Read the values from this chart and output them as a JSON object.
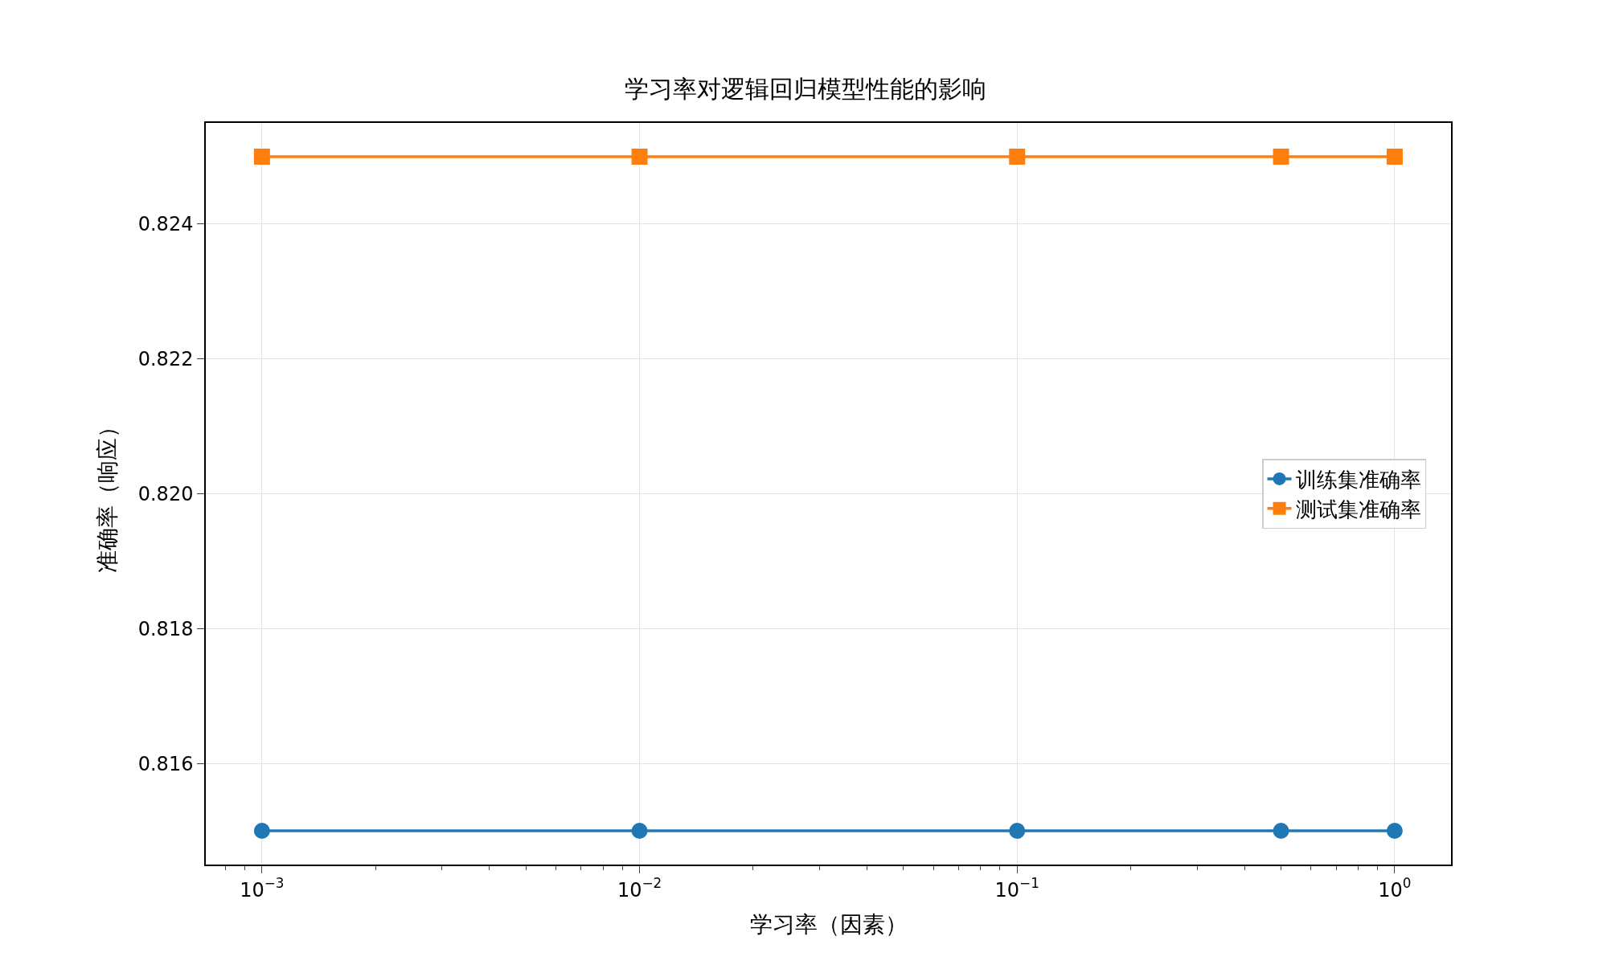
{
  "chart_data": {
    "type": "line",
    "title": "学习率对逻辑回归模型性能的影响",
    "xlabel": "学习率（因素）",
    "ylabel": "准确率（响应）",
    "x": [
      0.001,
      0.01,
      0.1,
      0.5,
      1
    ],
    "series": [
      {
        "name": "训练集准确率",
        "color": "#1f77b4",
        "marker": "circle",
        "values": [
          0.815,
          0.815,
          0.815,
          0.815,
          0.815
        ]
      },
      {
        "name": "测试集准确率",
        "color": "#ff7f0e",
        "marker": "square",
        "values": [
          0.825,
          0.825,
          0.825,
          0.825,
          0.825
        ]
      }
    ],
    "log": "x",
    "xlim": [
      0.00071,
      1.41
    ],
    "xticks": [
      {
        "value": 0.001,
        "label": "10$^{−3}$"
      },
      {
        "value": 0.01,
        "label": "10$^{−2}$"
      },
      {
        "value": 0.1,
        "label": "10$^{−1}$"
      },
      {
        "value": 1,
        "label": "10$^{0}$"
      }
    ],
    "ylim": [
      0.8145,
      0.8255
    ],
    "yticks": [
      {
        "value": 0.816,
        "label": "0.816"
      },
      {
        "value": 0.818,
        "label": "0.818"
      },
      {
        "value": 0.82,
        "label": "0.820"
      },
      {
        "value": 0.822,
        "label": "0.822"
      },
      {
        "value": 0.824,
        "label": "0.824"
      }
    ],
    "grid": true,
    "legend": "right",
    "line_style": "solid"
  }
}
